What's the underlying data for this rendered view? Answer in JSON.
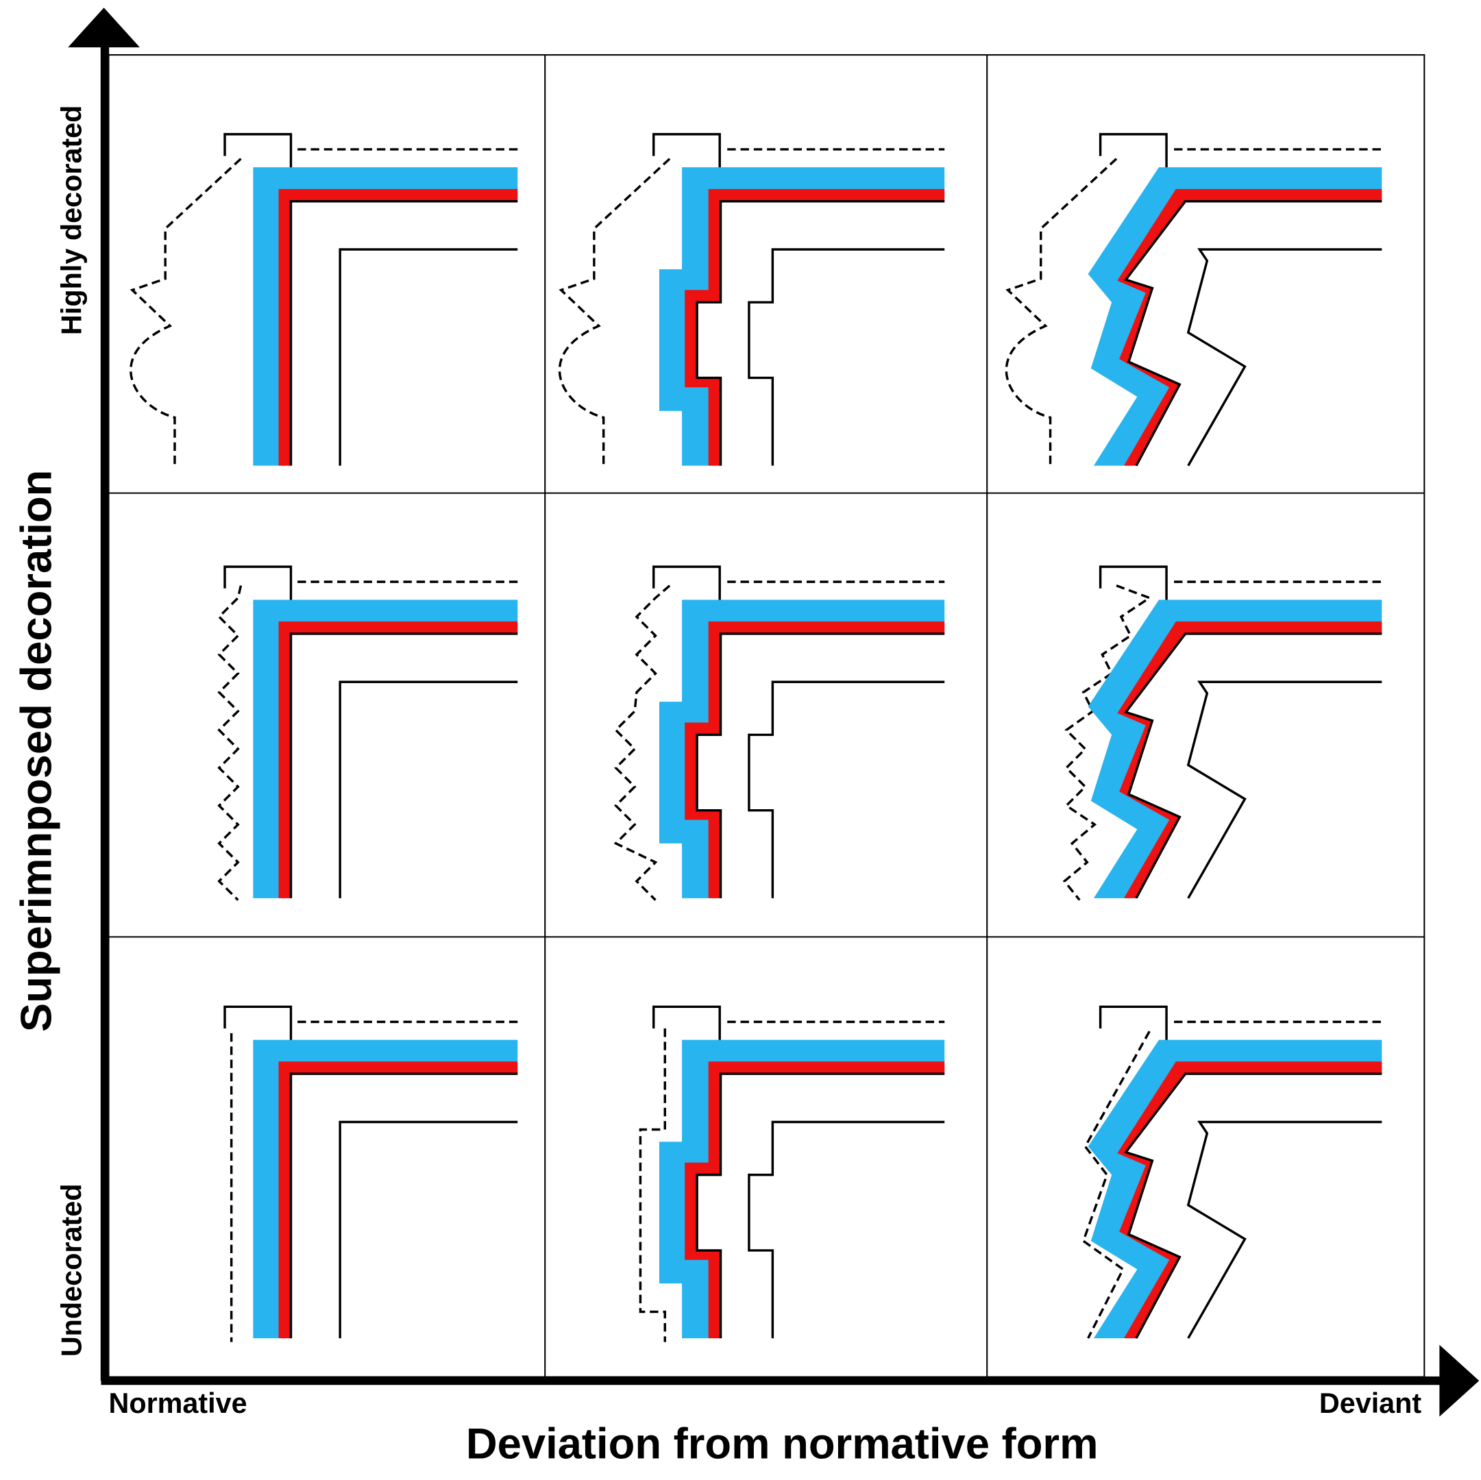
{
  "x_axis": {
    "title": "Deviation from normative form",
    "start_label": "Normative",
    "end_label": "Deviant"
  },
  "y_axis": {
    "title": "Superimnposed decoration",
    "start_label": "Undecorated",
    "end_label": "Highly decorated"
  }
}
